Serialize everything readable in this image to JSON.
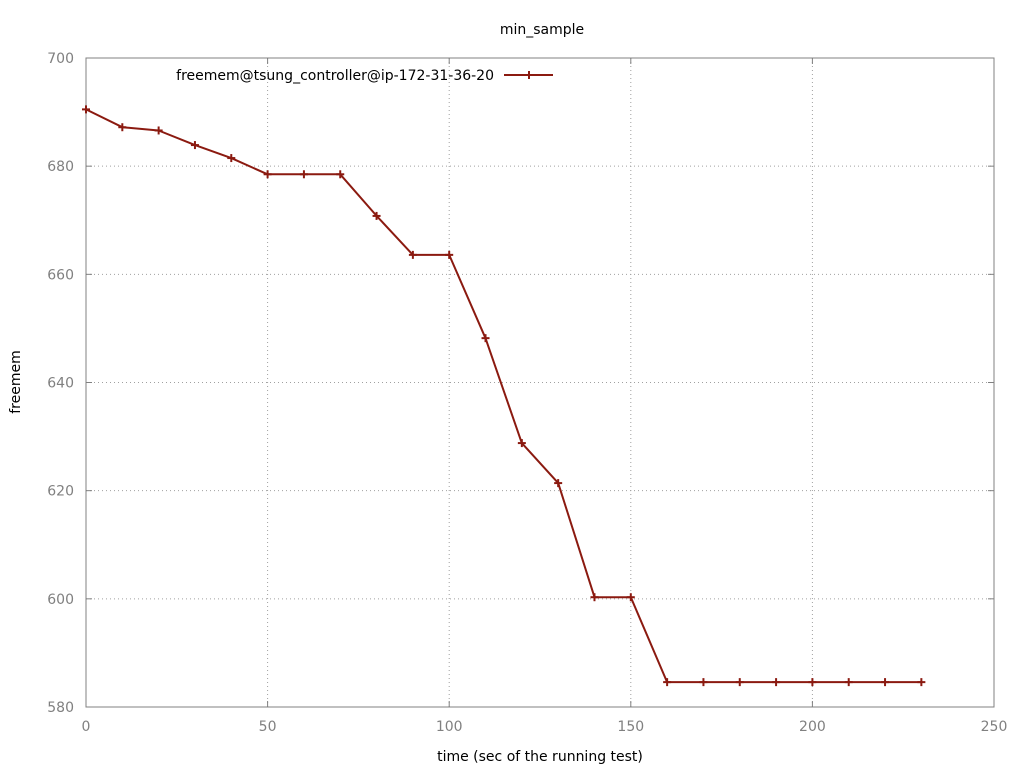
{
  "chart_data": {
    "type": "line",
    "title": "min_sample",
    "xlabel": "time (sec of the running test)",
    "ylabel": "freemem",
    "xlim": [
      0,
      250
    ],
    "ylim": [
      580,
      700
    ],
    "xticks": [
      0,
      50,
      100,
      150,
      200,
      250
    ],
    "yticks": [
      580,
      600,
      620,
      640,
      660,
      680,
      700
    ],
    "xtick_labels": [
      "0",
      "50",
      "100",
      "150",
      "200",
      "250"
    ],
    "ytick_labels": [
      "580",
      "600",
      "620",
      "640",
      "660",
      "680",
      "700"
    ],
    "grid": true,
    "legend_position": "top-left",
    "series": [
      {
        "name": "freemem@tsung_controller@ip-172-31-36-20",
        "color": "#8b1a10",
        "marker": "plus",
        "x": [
          0,
          10,
          20,
          30,
          40,
          50,
          60,
          70,
          80,
          90,
          100,
          110,
          120,
          130,
          140,
          150,
          160,
          170,
          180,
          190,
          200,
          210,
          220,
          230
        ],
        "y": [
          690.5,
          687.2,
          686.6,
          683.9,
          681.5,
          678.5,
          678.5,
          678.5,
          670.8,
          663.6,
          663.6,
          648.2,
          628.8,
          621.4,
          600.3,
          600.3,
          584.6,
          584.6,
          584.6,
          584.6,
          584.6,
          584.6,
          584.6,
          584.6
        ]
      }
    ]
  }
}
